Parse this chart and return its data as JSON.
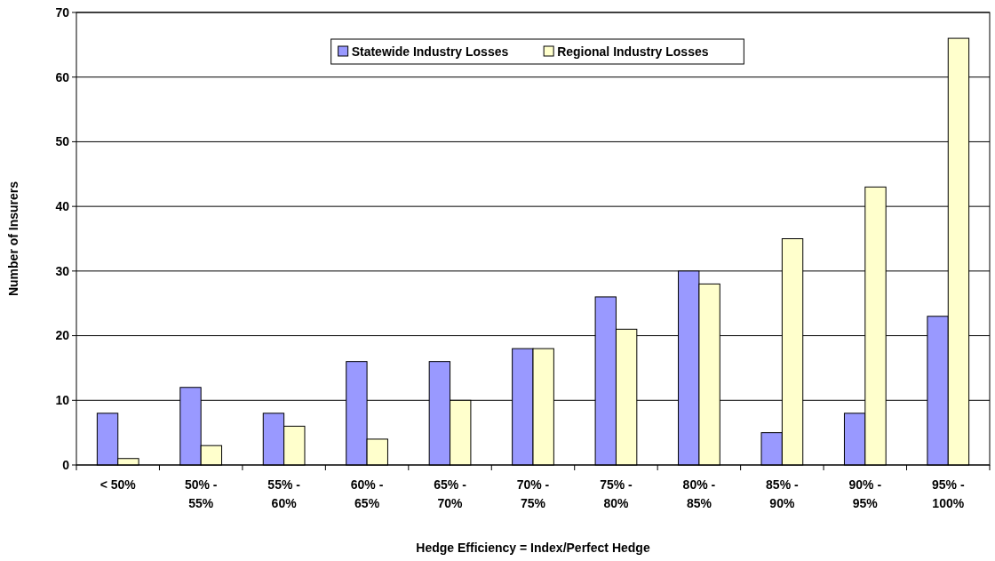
{
  "chart_data": {
    "type": "bar",
    "xlabel": "Hedge Efficiency = Index/Perfect Hedge",
    "ylabel": "Number of Insurers",
    "categories": [
      "< 50%",
      "50% - 55%",
      "55% - 60%",
      "60% - 65%",
      "65% - 70%",
      "70% - 75%",
      "75% - 80%",
      "80% - 85%",
      "85% - 90%",
      "90% - 95%",
      "95% - 100%"
    ],
    "series": [
      {
        "name": "Statewide Industry Losses",
        "color": "#9999ff",
        "values": [
          8,
          12,
          8,
          16,
          16,
          18,
          26,
          30,
          5,
          8,
          23
        ]
      },
      {
        "name": "Regional Industry Losses",
        "color": "#ffffcc",
        "values": [
          1,
          3,
          6,
          4,
          10,
          18,
          21,
          28,
          35,
          43,
          66
        ]
      }
    ],
    "ylim": [
      0,
      70
    ],
    "yticks": [
      0,
      10,
      20,
      30,
      40,
      50,
      60,
      70
    ],
    "grid": "y",
    "legend": "top"
  }
}
